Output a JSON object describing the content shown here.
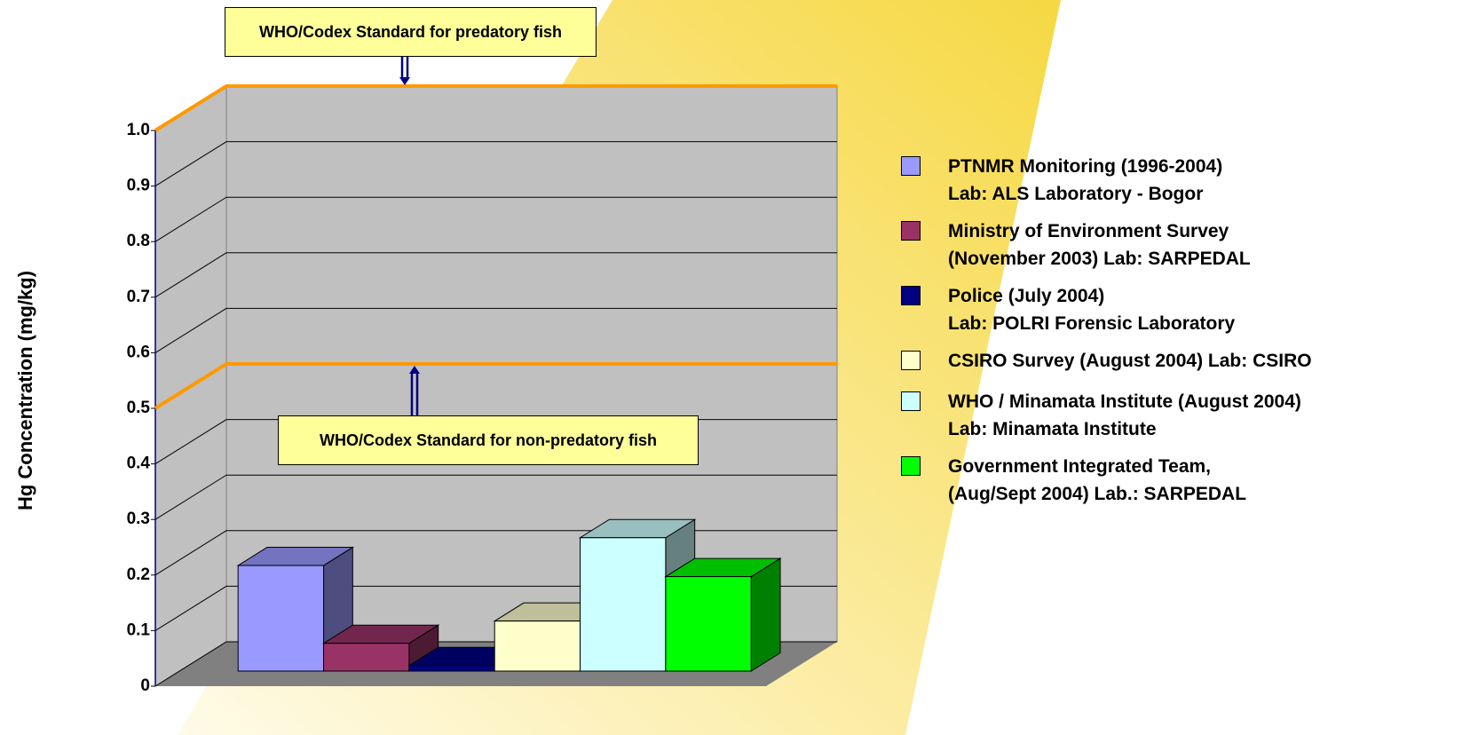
{
  "chart_data": {
    "type": "bar",
    "y_label": "Hg Concentration (mg/kg)",
    "categories": [
      null
    ],
    "series": [
      {
        "name": "PTNMR Monitoring (1996-2004)\nLab: ALS Laboratory - Bogor",
        "color": "#9999ff",
        "values": [
          0.19
        ]
      },
      {
        "name": "Ministry of Environment Survey\n(November 2003) Lab: SARPEDAL",
        "color": "#993366",
        "values": [
          0.05
        ]
      },
      {
        "name": "Police (July 2004)\nLab: POLRI Forensic Laboratory",
        "color": "#000080",
        "values": [
          0.01
        ]
      },
      {
        "name": "CSIRO Survey (August 2004) Lab: CSIRO",
        "color": "#ffffcc",
        "values": [
          0.09
        ]
      },
      {
        "name": "WHO / Minamata Institute (August 2004)\nLab: Minamata Institute",
        "color": "#ccffff",
        "values": [
          0.24
        ]
      },
      {
        "name": "Government Integrated Team,\n(Aug/Sept 2004) Lab.: SARPEDAL",
        "color": "#00ff00",
        "values": [
          0.17
        ]
      }
    ],
    "ylim": [
      0,
      1
    ],
    "yticks": [
      0,
      0.1,
      0.2,
      0.3,
      0.4,
      0.5,
      0.6,
      0.7,
      0.8,
      0.9,
      {
        "value": 1,
        "label": "1.0"
      }
    ],
    "grid": true,
    "reference_lines": [
      {
        "value": 1,
        "label": "WHO/Codex Standard for predatory fish",
        "color": "#ff9900"
      },
      {
        "value": 0.5,
        "label": "WHO/Codex Standard for non-predatory fish",
        "color": "#ff9900"
      }
    ]
  }
}
